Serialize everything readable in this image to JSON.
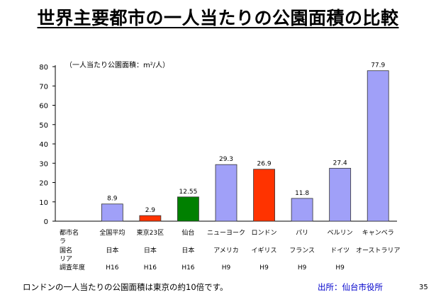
{
  "page": {
    "title": "世界主要都市の一人当たりの公園面積の比較",
    "footer_note": "ロンドンの一人当たりの公園面積は東京の約10倍です。",
    "source": "出所：仙台市役所",
    "page_number": "35"
  },
  "chart_data": {
    "type": "bar",
    "unit_label": "（一人当たり公園面積：m²/人）",
    "categories": [
      "全国平均",
      "東京23区",
      "仙台",
      "ニューヨーク",
      "ロンドン",
      "パリ",
      "ベルリン",
      "キャンベラ"
    ],
    "values": [
      8.9,
      2.9,
      12.55,
      29.3,
      26.9,
      11.8,
      27.4,
      77.9
    ],
    "value_labels": [
      "8.9",
      "2.9",
      "12.55",
      "29.3",
      "26.9",
      "11.8",
      "27.4",
      "77.9"
    ],
    "colors": [
      "#a0a0f8",
      "#ff3300",
      "#008000",
      "#a0a0f8",
      "#ff3300",
      "#a0a0f8",
      "#a0a0f8",
      "#a0a0f8"
    ],
    "countries": [
      "日本",
      "日本",
      "日本",
      "アメリカ",
      "イギリス",
      "フランス",
      "ドイツ",
      "オーストラリア"
    ],
    "years": [
      "H16",
      "H16",
      "H16",
      "H9",
      "H9",
      "H9",
      "H9",
      ""
    ],
    "row_labels": {
      "city": "都市名",
      "city_wrap": "ラ",
      "country": "国名",
      "country_wrap": "リア",
      "year": "調査年度"
    },
    "ylim": [
      0,
      80
    ],
    "yticks": [
      0,
      10,
      20,
      30,
      40,
      50,
      60,
      70,
      80
    ],
    "grid": false,
    "legend": "none"
  }
}
